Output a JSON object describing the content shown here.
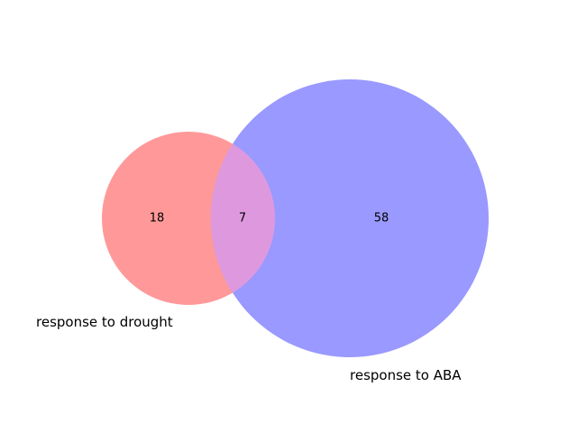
{
  "venn": {
    "colors": {
      "set_a": "#ff9999",
      "set_b": "#9999ff",
      "overlap": "#de99de"
    },
    "sets": {
      "a": {
        "label": "response to drought",
        "only_count": "18"
      },
      "b": {
        "label": "response to ABA",
        "only_count": "58"
      }
    },
    "intersection_count": "7"
  }
}
